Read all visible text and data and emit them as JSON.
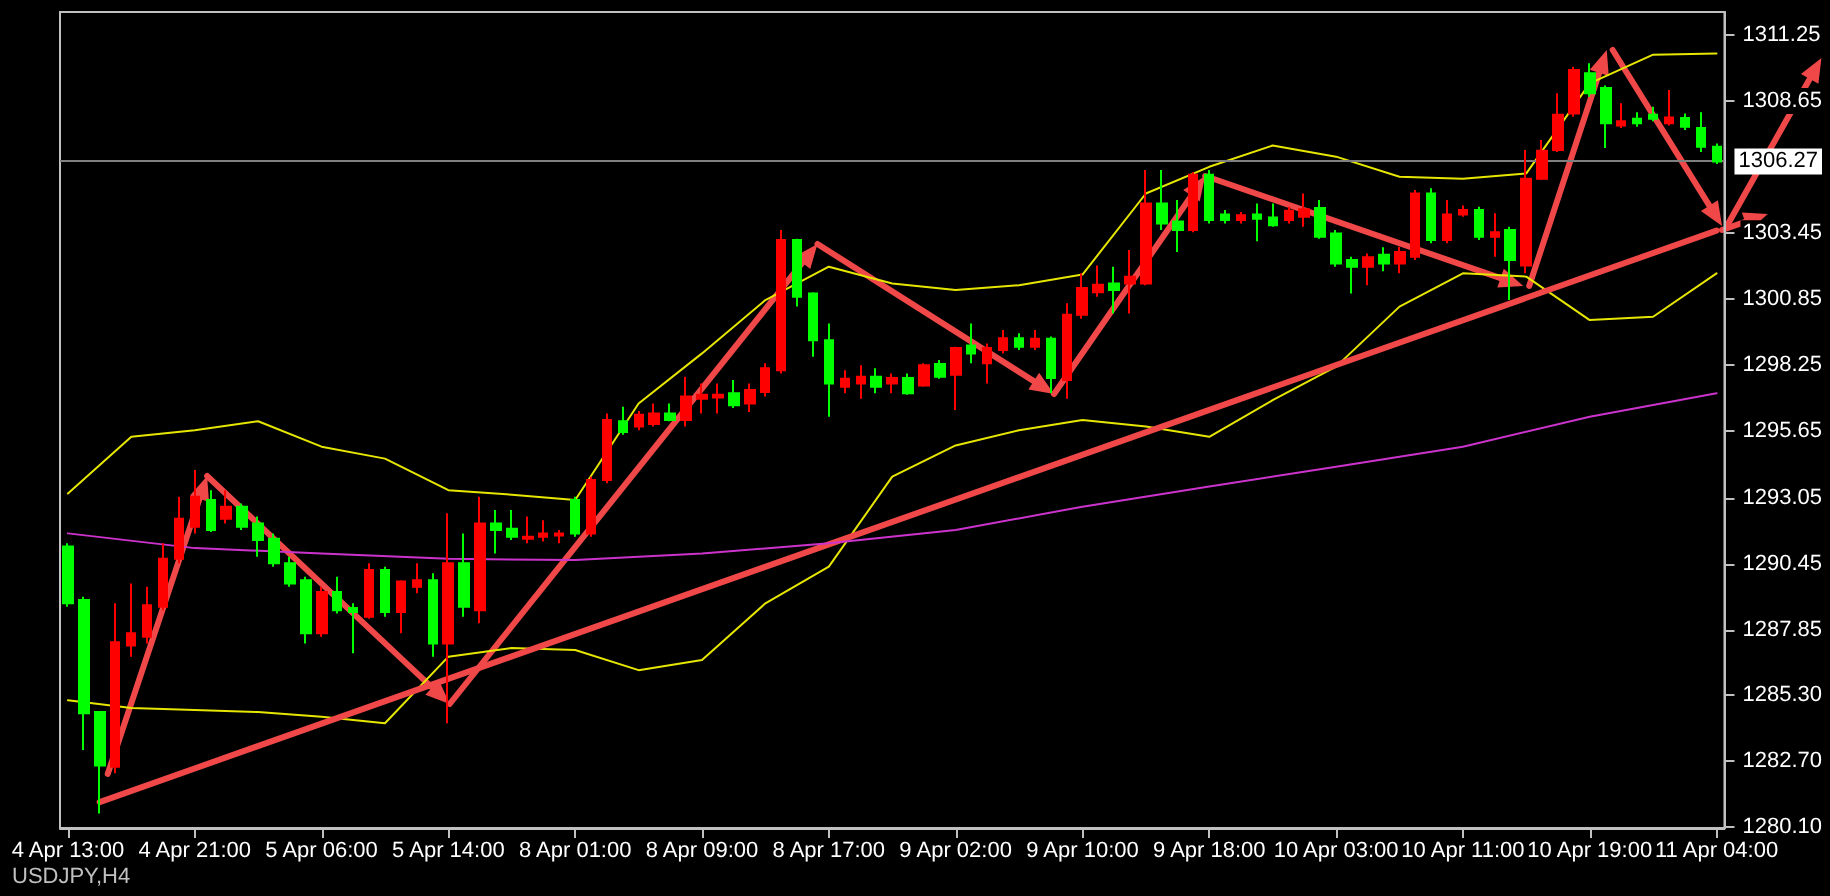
{
  "chart_data": {
    "type": "candlestick",
    "categories": [
      "4 Apr 13:00",
      null,
      null,
      null,
      null,
      null,
      null,
      null,
      "4 Apr 21:00",
      null,
      null,
      null,
      null,
      null,
      null,
      null,
      "5 Apr 06:00",
      null,
      null,
      null,
      null,
      null,
      null,
      null,
      "5 Apr 14:00",
      null,
      null,
      null,
      null,
      null,
      null,
      null,
      "8 Apr 01:00",
      null,
      null,
      null,
      null,
      null,
      null,
      null,
      "8 Apr 09:00",
      null,
      null,
      null,
      null,
      null,
      null,
      null,
      "8 Apr 17:00",
      null,
      null,
      null,
      null,
      null,
      null,
      null,
      "9 Apr 02:00",
      null,
      null,
      null,
      null,
      null,
      null,
      null,
      "9 Apr 10:00",
      null,
      null,
      null,
      null,
      null,
      null,
      null,
      "9 Apr 18:00",
      null,
      null,
      null,
      null,
      null,
      null,
      null,
      "10 Apr 03:00",
      null,
      null,
      null,
      null,
      null,
      null,
      null,
      "10 Apr 11:00",
      null,
      null,
      null,
      null,
      null,
      null,
      null,
      "10 Apr 19:00",
      null,
      null,
      null,
      null,
      null,
      null,
      null,
      "11 Apr 04:00"
    ],
    "ohlc": [
      [
        1291.12,
        1291.25,
        1288.75,
        1288.89
      ],
      [
        1289.02,
        1289.15,
        1283.12,
        1284.56
      ],
      [
        1284.61,
        1284.61,
        1280.62,
        1282.51
      ],
      [
        1282.46,
        1288.89,
        1282.2,
        1287.36
      ],
      [
        1287.23,
        1289.67,
        1286.79,
        1287.71
      ],
      [
        1287.57,
        1289.54,
        1287.31,
        1288.81
      ],
      [
        1288.75,
        1291.25,
        1288.62,
        1290.64
      ],
      [
        1290.64,
        1293.08,
        1290.46,
        1292.22
      ],
      [
        1291.9,
        1294.13,
        1291.64,
        1293.08
      ],
      [
        1292.95,
        1293.34,
        1291.69,
        1291.77
      ],
      [
        1292.22,
        1293.34,
        1292.03,
        1292.69
      ],
      [
        1292.69,
        1292.82,
        1291.77,
        1291.9
      ],
      [
        1292.03,
        1292.3,
        1290.72,
        1291.38
      ],
      [
        1291.43,
        1291.64,
        1290.33,
        1290.46
      ],
      [
        1290.46,
        1290.72,
        1289.54,
        1289.67
      ],
      [
        1289.8,
        1289.93,
        1287.31,
        1287.71
      ],
      [
        1287.71,
        1289.54,
        1287.57,
        1289.33
      ],
      [
        1289.33,
        1289.93,
        1288.49,
        1288.62
      ],
      [
        1288.7,
        1288.89,
        1286.92,
        1288.55
      ],
      [
        1288.36,
        1290.46,
        1288.28,
        1290.2
      ],
      [
        1290.2,
        1290.33,
        1288.36,
        1288.55
      ],
      [
        1288.55,
        1289.8,
        1287.71,
        1289.75
      ],
      [
        1289.54,
        1290.46,
        1289.28,
        1289.8
      ],
      [
        1289.8,
        1290.07,
        1286.79,
        1287.31
      ],
      [
        1287.31,
        1292.43,
        1284.17,
        1290.46
      ],
      [
        1290.46,
        1291.64,
        1288.36,
        1288.75
      ],
      [
        1288.62,
        1293.08,
        1288.1,
        1292.03
      ],
      [
        1292.03,
        1292.56,
        1290.85,
        1291.77
      ],
      [
        1291.82,
        1292.56,
        1291.38,
        1291.51
      ],
      [
        1291.43,
        1292.3,
        1291.25,
        1291.51
      ],
      [
        1291.51,
        1292.16,
        1291.32,
        1291.64
      ],
      [
        1291.56,
        1291.77,
        1291.25,
        1291.64
      ],
      [
        1292.95,
        1293.08,
        1291.51,
        1291.64
      ],
      [
        1291.64,
        1293.87,
        1291.51,
        1293.74
      ],
      [
        1293.74,
        1296.36,
        1293.61,
        1296.1
      ],
      [
        1296.05,
        1296.62,
        1295.52,
        1295.63
      ],
      [
        1295.84,
        1296.45,
        1295.7,
        1296.31
      ],
      [
        1295.94,
        1296.75,
        1295.84,
        1296.36
      ],
      [
        1296.36,
        1296.75,
        1296.05,
        1296.1
      ],
      [
        1296.1,
        1297.8,
        1295.84,
        1297.02
      ],
      [
        1296.94,
        1297.54,
        1296.36,
        1297.09
      ],
      [
        1296.99,
        1297.54,
        1296.36,
        1297.09
      ],
      [
        1297.15,
        1297.67,
        1296.57,
        1296.68
      ],
      [
        1296.75,
        1297.54,
        1296.41,
        1297.28
      ],
      [
        1297.2,
        1298.33,
        1297.02,
        1298.14
      ],
      [
        1298.06,
        1303.57,
        1297.93,
        1303.18
      ],
      [
        1303.18,
        1303.23,
        1300.56,
        1300.95
      ],
      [
        1301.08,
        1301.13,
        1298.59,
        1299.24
      ],
      [
        1299.24,
        1299.9,
        1296.23,
        1297.54
      ],
      [
        1297.41,
        1298.06,
        1297.15,
        1297.72
      ],
      [
        1297.54,
        1298.25,
        1296.94,
        1297.8
      ],
      [
        1297.8,
        1298.14,
        1297.15,
        1297.41
      ],
      [
        1297.54,
        1297.93,
        1297.15,
        1297.75
      ],
      [
        1297.75,
        1297.93,
        1297.09,
        1297.15
      ],
      [
        1297.46,
        1298.33,
        1297.41,
        1298.25
      ],
      [
        1298.3,
        1298.46,
        1297.72,
        1297.8
      ],
      [
        1297.88,
        1298.98,
        1296.49,
        1298.93
      ],
      [
        1299.03,
        1299.9,
        1298.33,
        1298.72
      ],
      [
        1298.33,
        1299.11,
        1297.54,
        1298.93
      ],
      [
        1298.85,
        1299.64,
        1298.72,
        1299.32
      ],
      [
        1299.32,
        1299.51,
        1298.85,
        1298.98
      ],
      [
        1298.98,
        1299.64,
        1298.85,
        1299.3
      ],
      [
        1299.3,
        1299.38,
        1297.15,
        1297.75
      ],
      [
        1297.67,
        1300.69,
        1296.94,
        1300.24
      ],
      [
        1300.24,
        1301.87,
        1300.08,
        1301.29
      ],
      [
        1301.13,
        1302.18,
        1300.95,
        1301.42
      ],
      [
        1301.47,
        1302.13,
        1300.29,
        1301.21
      ],
      [
        1301.47,
        1302.79,
        1300.29,
        1301.74
      ],
      [
        1301.47,
        1305.93,
        1301.4,
        1304.62
      ],
      [
        1304.62,
        1305.93,
        1303.57,
        1303.83
      ],
      [
        1303.91,
        1304.75,
        1302.71,
        1303.57
      ],
      [
        1303.57,
        1305.85,
        1303.49,
        1305.75
      ],
      [
        1305.75,
        1305.93,
        1303.83,
        1303.97
      ],
      [
        1304.18,
        1304.36,
        1303.83,
        1303.97
      ],
      [
        1303.97,
        1304.28,
        1303.83,
        1304.15
      ],
      [
        1304.18,
        1304.62,
        1303.13,
        1304.02
      ],
      [
        1304.07,
        1304.62,
        1303.7,
        1303.76
      ],
      [
        1303.97,
        1304.49,
        1303.83,
        1304.33
      ],
      [
        1304.1,
        1305.01,
        1303.7,
        1304.39
      ],
      [
        1304.44,
        1304.75,
        1303.23,
        1303.31
      ],
      [
        1303.44,
        1303.57,
        1302.13,
        1302.26
      ],
      [
        1302.39,
        1302.52,
        1301.08,
        1302.13
      ],
      [
        1302.13,
        1302.65,
        1301.4,
        1302.5
      ],
      [
        1302.6,
        1302.9,
        1301.95,
        1302.26
      ],
      [
        1302.26,
        1302.92,
        1301.87,
        1302.71
      ],
      [
        1302.52,
        1305.15,
        1302.39,
        1305.01
      ],
      [
        1305.01,
        1305.22,
        1303.05,
        1303.18
      ],
      [
        1303.18,
        1304.75,
        1303.05,
        1304.18
      ],
      [
        1304.18,
        1304.54,
        1304.1,
        1304.36
      ],
      [
        1304.36,
        1304.49,
        1303.18,
        1303.31
      ],
      [
        1303.31,
        1304.23,
        1302.52,
        1303.49
      ],
      [
        1303.57,
        1303.7,
        1300.82,
        1302.39
      ],
      [
        1302.18,
        1306.72,
        1301.87,
        1305.59
      ],
      [
        1305.59,
        1307.11,
        1305.54,
        1306.69
      ],
      [
        1306.72,
        1308.95,
        1306.64,
        1308.11
      ],
      [
        1308.16,
        1310.0,
        1308.03,
        1309.87
      ],
      [
        1309.74,
        1310.13,
        1308.82,
        1308.95
      ],
      [
        1309.16,
        1309.26,
        1306.8,
        1307.77
      ],
      [
        1307.69,
        1308.56,
        1307.59,
        1307.85
      ],
      [
        1307.95,
        1308.21,
        1307.64,
        1307.77
      ],
      [
        1308.11,
        1308.42,
        1307.85,
        1307.95
      ],
      [
        1307.77,
        1309.08,
        1307.69,
        1308.0
      ],
      [
        1307.98,
        1308.16,
        1307.51,
        1307.64
      ],
      [
        1307.59,
        1308.21,
        1306.64,
        1306.85
      ],
      [
        1306.85,
        1306.98,
        1306.17,
        1306.27
      ]
    ],
    "colors": [
      "#00ff00",
      "#00ff00",
      "#00ff00",
      "#ff0000",
      "#ff0000",
      "#ff0000",
      "#ff0000",
      "#ff0000",
      "#ff0000",
      "#00ff00",
      "#ff0000",
      "#00ff00",
      "#00ff00",
      "#00ff00",
      "#00ff00",
      "#00ff00",
      "#ff0000",
      "#00ff00",
      "#00ff00",
      "#ff0000",
      "#00ff00",
      "#ff0000",
      "#ff0000",
      "#00ff00",
      "#ff0000",
      "#00ff00",
      "#ff0000",
      "#00ff00",
      "#00ff00",
      "#ff0000",
      "#ff0000",
      "#ff0000",
      "#00ff00",
      "#ff0000",
      "#ff0000",
      "#00ff00",
      "#ff0000",
      "#ff0000",
      "#00ff00",
      "#ff0000",
      "#ff0000",
      "#ff0000",
      "#00ff00",
      "#ff0000",
      "#ff0000",
      "#ff0000",
      "#00ff00",
      "#00ff00",
      "#00ff00",
      "#ff0000",
      "#ff0000",
      "#00ff00",
      "#ff0000",
      "#00ff00",
      "#ff0000",
      "#00ff00",
      "#ff0000",
      "#00ff00",
      "#ff0000",
      "#ff0000",
      "#00ff00",
      "#ff0000",
      "#00ff00",
      "#ff0000",
      "#ff0000",
      "#ff0000",
      "#00ff00",
      "#ff0000",
      "#ff0000",
      "#00ff00",
      "#00ff00",
      "#ff0000",
      "#00ff00",
      "#00ff00",
      "#ff0000",
      "#00ff00",
      "#00ff00",
      "#ff0000",
      "#ff0000",
      "#00ff00",
      "#00ff00",
      "#00ff00",
      "#ff0000",
      "#00ff00",
      "#ff0000",
      "#ff0000",
      "#00ff00",
      "#ff0000",
      "#ff0000",
      "#00ff00",
      "#ff0000",
      "#00ff00",
      "#ff0000",
      "#ff0000",
      "#ff0000",
      "#ff0000",
      "#00ff00",
      "#00ff00",
      "#ff0000",
      "#00ff00",
      "#00ff00",
      "#ff0000",
      "#00ff00",
      "#00ff00",
      "#00ff00"
    ],
    "series": [
      {
        "type": "line",
        "color": "#e6e600",
        "values": [
          1293.21,
          null,
          null,
          null,
          1295.44,
          null,
          null,
          null,
          1295.7,
          null,
          null,
          null,
          1296.05,
          null,
          null,
          null,
          1295.05,
          null,
          null,
          null,
          1294.58,
          null,
          null,
          null,
          1293.34,
          null,
          null,
          null,
          1293.16,
          null,
          null,
          null,
          1292.95,
          null,
          null,
          null,
          1296.75,
          null,
          null,
          null,
          1298.72,
          null,
          null,
          null,
          1300.82,
          null,
          null,
          null,
          1302.13,
          null,
          null,
          null,
          1301.47,
          null,
          null,
          null,
          1301.21,
          null,
          null,
          null,
          1301.4,
          null,
          null,
          null,
          1301.82,
          null,
          null,
          null,
          1305.01,
          null,
          null,
          null,
          1306.06,
          null,
          null,
          null,
          1306.9,
          null,
          null,
          null,
          1306.46,
          null,
          null,
          null,
          1305.67,
          null,
          null,
          null,
          1305.59,
          null,
          null,
          null,
          1305.8,
          null,
          null,
          null,
          1309.34,
          null,
          null,
          null,
          1310.47,
          null,
          null,
          null,
          1310.52
        ]
      },
      {
        "type": "line",
        "color": "#e6e600",
        "values": [
          1285.08,
          null,
          null,
          null,
          1284.77,
          null,
          null,
          null,
          1284.69,
          null,
          null,
          null,
          1284.61,
          null,
          null,
          null,
          1284.43,
          null,
          null,
          null,
          1284.17,
          null,
          null,
          null,
          1286.79,
          null,
          null,
          null,
          1287.13,
          null,
          null,
          null,
          1287.05,
          null,
          null,
          null,
          1286.26,
          null,
          null,
          null,
          1286.66,
          null,
          null,
          null,
          1288.89,
          null,
          null,
          null,
          1290.33,
          null,
          null,
          null,
          1293.87,
          null,
          null,
          null,
          1295.1,
          null,
          null,
          null,
          1295.7,
          null,
          null,
          null,
          1296.1,
          null,
          null,
          null,
          1295.84,
          null,
          null,
          null,
          1295.44,
          null,
          null,
          null,
          1296.88,
          null,
          null,
          null,
          1298.2,
          null,
          null,
          null,
          1300.56,
          null,
          null,
          null,
          1301.87,
          null,
          null,
          null,
          1301.74,
          null,
          null,
          null,
          1300.03,
          null,
          null,
          null,
          1300.16,
          null,
          null,
          null,
          1301.87
        ]
      },
      {
        "type": "line",
        "color": "#f04848",
        "values": [
          null,
          null,
          1281.07,
          null,
          null,
          null,
          null,
          null,
          null,
          null,
          null,
          null,
          null,
          null,
          null,
          null,
          null,
          null,
          null,
          null,
          null,
          null,
          null,
          null,
          null,
          null,
          null,
          null,
          null,
          null,
          null,
          null,
          null,
          null,
          null,
          null,
          null,
          null,
          null,
          null,
          null,
          null,
          null,
          null,
          null,
          null,
          null,
          null,
          null,
          null,
          null,
          null,
          null,
          null,
          null,
          null,
          null,
          null,
          null,
          null,
          null,
          null,
          null,
          null,
          null,
          null,
          null,
          null,
          null,
          null,
          null,
          null,
          null,
          null,
          null,
          null,
          null,
          null,
          null,
          null,
          null,
          null,
          null,
          null,
          null,
          null,
          null,
          null,
          null,
          null,
          null,
          null,
          null,
          null,
          null,
          null,
          null,
          null,
          null,
          null,
          null,
          null,
          null,
          null,
          1303.55
        ]
      },
      {
        "type": "line",
        "color": "#cc33cc",
        "values": [
          1291.64,
          null,
          null,
          null,
          null,
          null,
          null,
          null,
          1291.06,
          null,
          null,
          null,
          null,
          null,
          null,
          null,
          1290.85,
          null,
          null,
          null,
          null,
          null,
          null,
          null,
          1290.64,
          null,
          null,
          null,
          null,
          null,
          null,
          null,
          1290.59,
          null,
          null,
          null,
          null,
          null,
          null,
          null,
          1290.85,
          null,
          null,
          null,
          null,
          null,
          null,
          null,
          1291.25,
          null,
          null,
          null,
          null,
          null,
          null,
          null,
          1291.77,
          null,
          null,
          null,
          null,
          null,
          null,
          null,
          1292.69,
          null,
          null,
          null,
          null,
          null,
          null,
          null,
          1293.48,
          null,
          null,
          null,
          null,
          null,
          null,
          null,
          1294.26,
          null,
          null,
          null,
          null,
          null,
          null,
          null,
          1295.05,
          null,
          null,
          null,
          null,
          null,
          null,
          null,
          1296.23,
          null,
          null,
          null,
          null,
          null,
          null,
          null,
          1297.15
        ]
      }
    ],
    "ylim": [
      1280.05,
      1312.15
    ],
    "yticks": [
      {
        "value": 1280.1,
        "label": "1280.10"
      },
      {
        "value": 1282.7,
        "label": "1282.70"
      },
      {
        "value": 1285.3,
        "label": "1285.30"
      },
      1287.85,
      1290.45,
      1293.05,
      1295.65,
      1298.25,
      1300.85,
      1303.45,
      1308.65,
      1311.25
    ],
    "ref_lines": [
      {
        "axis": "y",
        "value": 1306.27,
        "label": "1306.27",
        "color": "#808080"
      }
    ],
    "annotations": [
      "USDJPY,H4"
    ]
  }
}
